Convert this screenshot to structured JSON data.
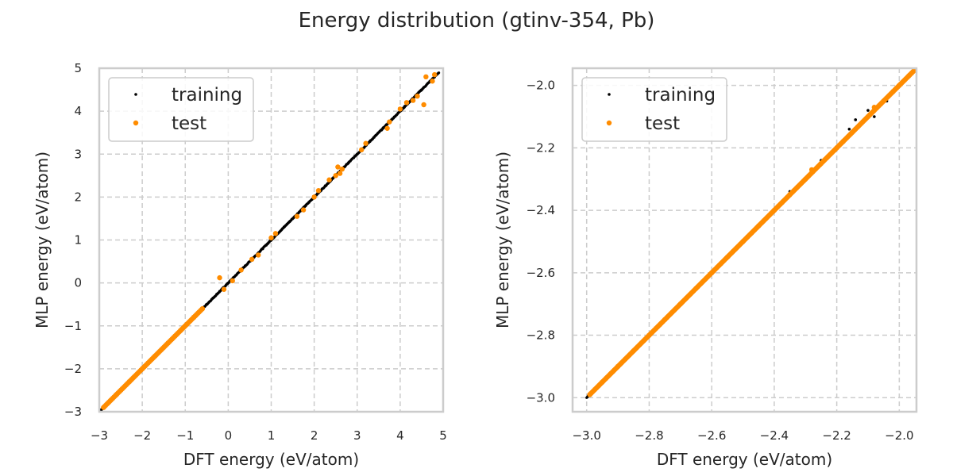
{
  "figure": {
    "title": "Energy distribution (gtinv-354, Pb)"
  },
  "colors": {
    "training": "#000000",
    "test": "#ff8c00",
    "grid": "#cccccc",
    "frame": "#cccccc",
    "text": "#262626"
  },
  "chart_data": [
    {
      "type": "scatter",
      "xlabel": "DFT energy (eV/atom)",
      "ylabel": "MLP energy (eV/atom)",
      "xlim": [
        -3,
        5
      ],
      "ylim": [
        -3,
        5
      ],
      "xticks": [
        -3,
        -2,
        -1,
        0,
        1,
        2,
        3,
        4,
        5
      ],
      "yticks": [
        -3,
        -2,
        -1,
        0,
        1,
        2,
        3,
        4,
        5
      ],
      "xtick_labels": [
        "−3",
        "−2",
        "−1",
        "0",
        "1",
        "2",
        "3",
        "4",
        "5"
      ],
      "ytick_labels": [
        "−3",
        "−2",
        "−1",
        "0",
        "1",
        "2",
        "3",
        "4",
        "5"
      ],
      "grid": true,
      "legend": "upper-left",
      "series": [
        {
          "name": "training",
          "x_range": [
            -3.0,
            4.9
          ],
          "note_points": "dense points along y = x",
          "points": [
            [
              -2.95,
              -2.95
            ],
            [
              -2.7,
              -2.7
            ],
            [
              -2.4,
              -2.4
            ],
            [
              -2.0,
              -2.0
            ],
            [
              -1.6,
              -1.6
            ],
            [
              -1.2,
              -1.2
            ],
            [
              -0.8,
              -0.8
            ],
            [
              -0.5,
              -0.5
            ],
            [
              -0.2,
              -0.2
            ],
            [
              0.0,
              0.0
            ],
            [
              0.4,
              0.4
            ],
            [
              0.8,
              0.8
            ],
            [
              1.0,
              1.0
            ],
            [
              1.3,
              1.3
            ],
            [
              1.8,
              1.8
            ],
            [
              2.1,
              2.1
            ],
            [
              2.4,
              2.4
            ],
            [
              2.8,
              2.8
            ],
            [
              3.0,
              3.0
            ],
            [
              3.3,
              3.3
            ],
            [
              3.6,
              3.6
            ],
            [
              3.8,
              3.8
            ],
            [
              4.1,
              4.1
            ],
            [
              4.4,
              4.4
            ],
            [
              4.8,
              4.8
            ]
          ]
        },
        {
          "name": "test",
          "points": [
            [
              -2.9,
              -2.9
            ],
            [
              -2.6,
              -2.6
            ],
            [
              -2.3,
              -2.3
            ],
            [
              -2.0,
              -2.0
            ],
            [
              -1.7,
              -1.7
            ],
            [
              -1.4,
              -1.4
            ],
            [
              -1.1,
              -1.1
            ],
            [
              -0.8,
              -0.8
            ],
            [
              -0.6,
              -0.6
            ],
            [
              -0.2,
              0.12
            ],
            [
              -0.1,
              -0.15
            ],
            [
              0.1,
              0.05
            ],
            [
              0.3,
              0.3
            ],
            [
              0.55,
              0.55
            ],
            [
              0.7,
              0.65
            ],
            [
              1.0,
              1.05
            ],
            [
              1.1,
              1.15
            ],
            [
              1.6,
              1.55
            ],
            [
              1.75,
              1.7
            ],
            [
              2.0,
              2.0
            ],
            [
              2.1,
              2.15
            ],
            [
              2.35,
              2.4
            ],
            [
              2.5,
              2.5
            ],
            [
              2.6,
              2.55
            ],
            [
              2.55,
              2.7
            ],
            [
              2.65,
              2.65
            ],
            [
              3.1,
              3.1
            ],
            [
              3.2,
              3.25
            ],
            [
              3.7,
              3.6
            ],
            [
              3.75,
              3.75
            ],
            [
              4.0,
              4.05
            ],
            [
              4.15,
              4.2
            ],
            [
              4.3,
              4.25
            ],
            [
              4.4,
              4.35
            ],
            [
              4.55,
              4.15
            ],
            [
              4.6,
              4.8
            ],
            [
              4.75,
              4.7
            ],
            [
              4.8,
              4.85
            ]
          ]
        }
      ]
    },
    {
      "type": "scatter",
      "xlabel": "DFT energy (eV/atom)",
      "ylabel": "MLP energy (eV/atom)",
      "xlim": [
        -3.045,
        -1.945
      ],
      "ylim": [
        -3.045,
        -1.945
      ],
      "xticks": [
        -3.0,
        -2.8,
        -2.6,
        -2.4,
        -2.2,
        -2.0
      ],
      "yticks": [
        -3.0,
        -2.8,
        -2.6,
        -2.4,
        -2.2,
        -2.0
      ],
      "xtick_labels": [
        "−3.0",
        "−2.8",
        "−2.6",
        "−2.4",
        "−2.2",
        "−2.0"
      ],
      "ytick_labels": [
        "−3.0",
        "−2.8",
        "−2.6",
        "−2.4",
        "−2.2",
        "−2.0"
      ],
      "grid": true,
      "legend": "upper-left",
      "series": [
        {
          "name": "training",
          "x_range": [
            -3.0,
            -1.95
          ],
          "note_points": "dense points along y = x",
          "points": [
            [
              -2.98,
              -2.98
            ],
            [
              -2.9,
              -2.9
            ],
            [
              -2.8,
              -2.8
            ],
            [
              -2.7,
              -2.7
            ],
            [
              -2.6,
              -2.6
            ],
            [
              -2.5,
              -2.5
            ],
            [
              -2.4,
              -2.4
            ],
            [
              -2.35,
              -2.34
            ],
            [
              -2.3,
              -2.3
            ],
            [
              -2.25,
              -2.24
            ],
            [
              -2.2,
              -2.2
            ],
            [
              -2.16,
              -2.14
            ],
            [
              -2.14,
              -2.11
            ],
            [
              -2.12,
              -2.12
            ],
            [
              -2.1,
              -2.08
            ],
            [
              -2.08,
              -2.1
            ],
            [
              -2.06,
              -2.06
            ],
            [
              -2.04,
              -2.05
            ],
            [
              -2.02,
              -2.02
            ],
            [
              -2.0,
              -2.0
            ],
            [
              -1.97,
              -1.97
            ]
          ]
        },
        {
          "name": "test",
          "points": [
            [
              -2.99,
              -2.99
            ],
            [
              -2.95,
              -2.95
            ],
            [
              -2.9,
              -2.9
            ],
            [
              -2.85,
              -2.85
            ],
            [
              -2.8,
              -2.8
            ],
            [
              -2.75,
              -2.75
            ],
            [
              -2.7,
              -2.7
            ],
            [
              -2.65,
              -2.65
            ],
            [
              -2.6,
              -2.6
            ],
            [
              -2.55,
              -2.55
            ],
            [
              -2.5,
              -2.5
            ],
            [
              -2.45,
              -2.45
            ],
            [
              -2.4,
              -2.4
            ],
            [
              -2.35,
              -2.35
            ],
            [
              -2.3,
              -2.3
            ],
            [
              -2.28,
              -2.27
            ],
            [
              -2.25,
              -2.25
            ],
            [
              -2.2,
              -2.2
            ],
            [
              -2.18,
              -2.18
            ],
            [
              -2.15,
              -2.15
            ],
            [
              -2.1,
              -2.1
            ],
            [
              -2.08,
              -2.07
            ],
            [
              -2.05,
              -2.05
            ],
            [
              -2.02,
              -2.02
            ],
            [
              -2.0,
              -2.0
            ],
            [
              -1.97,
              -1.97
            ],
            [
              -1.95,
              -1.95
            ]
          ]
        }
      ]
    }
  ]
}
